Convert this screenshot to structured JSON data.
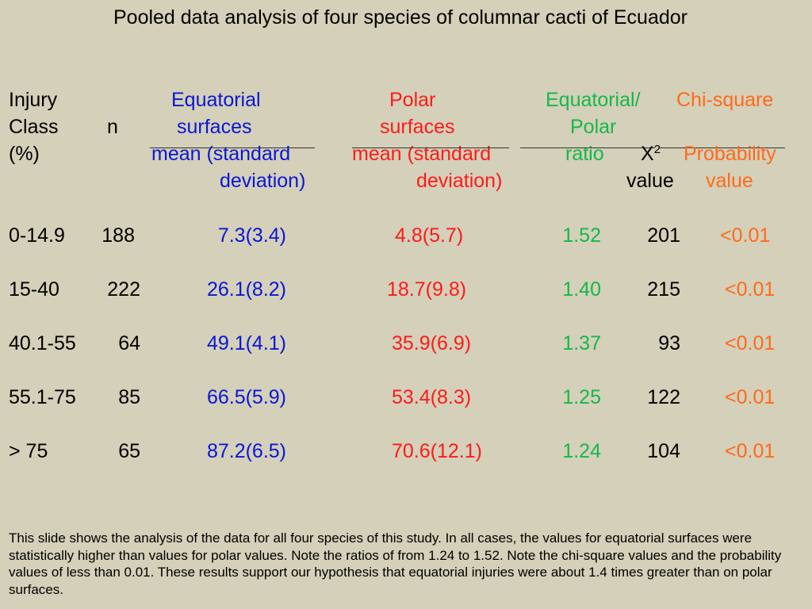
{
  "title": "Pooled data analysis of four species of columnar cacti of Ecuador",
  "headers": {
    "injury": [
      "Injury",
      "Class",
      "(%)"
    ],
    "n": "n",
    "equatorial": [
      "Equatorial",
      "surfaces",
      "mean  (standard",
      "deviation)"
    ],
    "polar": [
      "Polar",
      "surfaces",
      "mean (standard",
      "deviation)"
    ],
    "ratio": [
      "Equatorial/",
      "Polar",
      "ratio"
    ],
    "chi_x": "X",
    "chi_sup": "2",
    "chi_value": "value",
    "chisquare": "Chi-square",
    "prob": [
      "Probability",
      "value"
    ]
  },
  "rows": [
    {
      "class": "0-14.9",
      "n": "188",
      "equatorial": "7.3(3.4)",
      "polar": "4.8(5.7)",
      "ratio": "1.52",
      "chi": "201",
      "p": "<0.01"
    },
    {
      "class": "15-40",
      "n": "222",
      "equatorial": "26.1(8.2)",
      "polar": "18.7(9.8)",
      "ratio": "1.40",
      "chi": "215",
      "p": "<0.01"
    },
    {
      "class": "40.1-55",
      "n": "64",
      "equatorial": "49.1(4.1)",
      "polar": "35.9(6.9)",
      "ratio": "1.37",
      "chi": "93",
      "p": "<0.01"
    },
    {
      "class": "55.1-75",
      "n": "85",
      "equatorial": "66.5(5.9)",
      "polar": "53.4(8.3)",
      "ratio": "1.25",
      "chi": "122",
      "p": "<0.01"
    },
    {
      "class": "> 75",
      "n": "65",
      "equatorial": "87.2(6.5)",
      "polar": "70.6(12.1)",
      "ratio": "1.24",
      "chi": "104",
      "p": "<0.01"
    }
  ],
  "note": "This slide shows the analysis of the data for all four species of this study. In all cases, the values for equatorial surfaces were statistically higher than values for polar values. Note the ratios of from 1.24 to 1.52. Note the chi-square values and the probability values of less than 0.01. These results support our hypothesis that equatorial injuries were about 1.4 times greater than on polar surfaces.",
  "colors": {
    "background": "#d4d0b9",
    "equatorial": "#0a16d6",
    "polar": "#ff1a1a",
    "ratio": "#14b84a",
    "probability": "#ff6a1a"
  }
}
